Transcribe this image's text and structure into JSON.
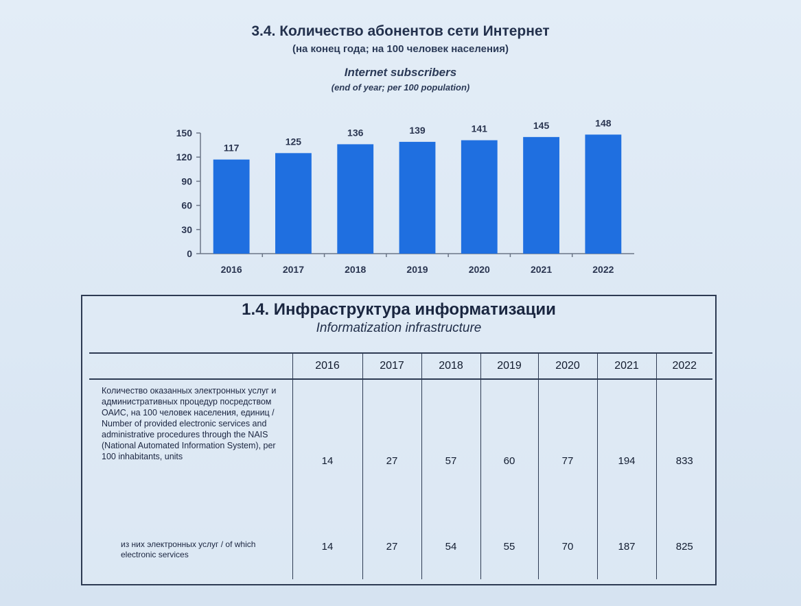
{
  "chart": {
    "title": "3.4. Количество абонентов сети Интернет",
    "subtitle": "(на конец года; на 100 человек населения)",
    "title_en": "Internet subscribers",
    "subtitle_en": "(end of year; per 100 population)"
  },
  "chart_data": {
    "type": "bar",
    "categories": [
      "2016",
      "2017",
      "2018",
      "2019",
      "2020",
      "2021",
      "2022"
    ],
    "values": [
      117,
      125,
      136,
      139,
      141,
      145,
      148
    ],
    "ylim": [
      0,
      150
    ],
    "yticks": [
      0,
      30,
      60,
      90,
      120,
      150
    ],
    "bar_color": "#1f6fe0",
    "data_labels": true,
    "grid": false,
    "xlabel": "",
    "ylabel": ""
  },
  "table": {
    "title": "1.4. Инфраструктура информатизации",
    "title_en": "Informatization infrastructure",
    "columns": [
      "",
      "2016",
      "2017",
      "2018",
      "2019",
      "2020",
      "2021",
      "2022"
    ],
    "rows": [
      {
        "label": "Количество оказанных электронных услуг и административных процедур посредством ОАИС, на 100 человек населения, единиц / Number of provided electronic services and administrative procedures through the NAIS (National Automated Information System), per 100 inhabitants, units",
        "values": [
          "14",
          "27",
          "57",
          "60",
          "77",
          "194",
          "833"
        ]
      },
      {
        "label": "из них электронных услуг / of which electronic services",
        "values": [
          "14",
          "27",
          "54",
          "55",
          "70",
          "187",
          "825"
        ]
      }
    ]
  }
}
